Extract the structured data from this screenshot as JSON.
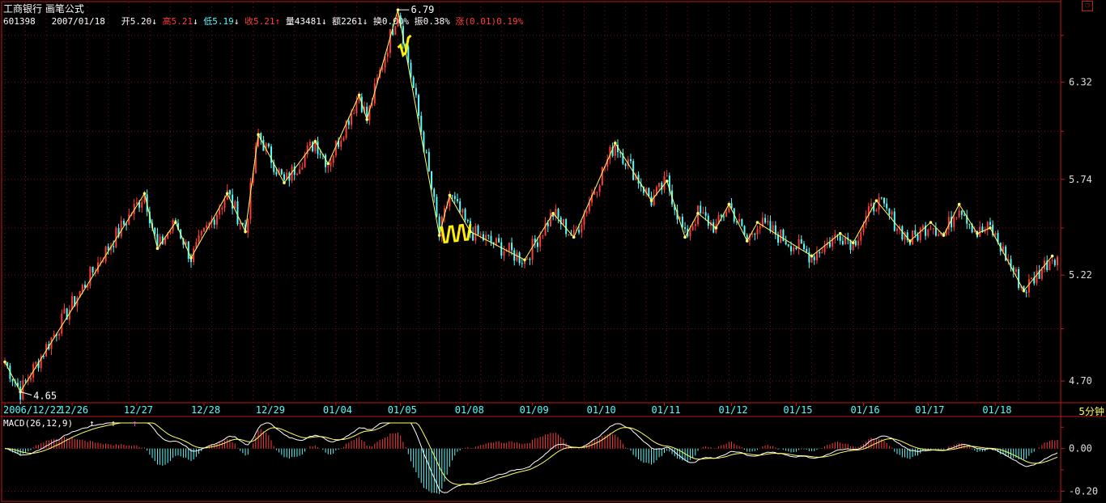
{
  "header": {
    "stock_name": "工商银行",
    "formula": "画笔公式"
  },
  "quote": {
    "code": "601398",
    "date": "2007/01/18",
    "open_label": "开",
    "open": "5.20",
    "high_label": "高",
    "high": "5.21",
    "low_label": "低",
    "low": "5.19",
    "close_label": "收",
    "close": "5.21",
    "volume_label": "量",
    "volume": "43481",
    "amount_label": "额",
    "amount": "2261",
    "turnover_label": "换",
    "turnover": "0.00%",
    "amplitude_label": "振",
    "amplitude": "0.38%",
    "change_label": "涨",
    "change": "(0.01)",
    "change_pct": "0.19%"
  },
  "period": "5分钟",
  "window_icon": "restore-icon",
  "colors": {
    "background": "#000000",
    "frame": "#c01818",
    "grid": "#7a1010",
    "up": "#ff3b3b",
    "down": "#54fcfc",
    "zigzag": "#ffff66",
    "zigzag_highlight": "#ffee00",
    "axis_text": "#dddddd",
    "date_text": "#54fcfc",
    "dif_line": "#ffffff",
    "dea_line": "#ffff66"
  },
  "chart_data": [
    {
      "type": "candlestick",
      "title": "工商银行 画笔公式",
      "x_ticks": [
        "2006/12/22",
        "12/26",
        "12/27",
        "12/28",
        "12/29",
        "01/04",
        "01/05",
        "01/08",
        "01/09",
        "01/10",
        "01/11",
        "01/12",
        "01/15",
        "01/16",
        "01/17",
        "01/18"
      ],
      "ylim": [
        4.6,
        6.84
      ],
      "y_ticks": [
        4.7,
        5.22,
        5.74,
        6.32
      ],
      "y_tick_labels": [
        "4.70",
        "5.22",
        "5.74",
        "6.32"
      ],
      "scale": "log",
      "grid": true,
      "annotations": [
        {
          "text": "6.79",
          "type": "max"
        },
        {
          "text": "4.65",
          "type": "min"
        }
      ],
      "zigzag": {
        "name": "画笔",
        "points": [
          {
            "i": 0,
            "v": 4.79
          },
          {
            "i": 6,
            "v": 4.65
          },
          {
            "i": 54,
            "v": 5.66
          },
          {
            "i": 59,
            "v": 5.36
          },
          {
            "i": 66,
            "v": 5.5
          },
          {
            "i": 72,
            "v": 5.31
          },
          {
            "i": 86,
            "v": 5.66
          },
          {
            "i": 93,
            "v": 5.45
          },
          {
            "i": 98,
            "v": 6.0
          },
          {
            "i": 108,
            "v": 5.72
          },
          {
            "i": 120,
            "v": 5.96
          },
          {
            "i": 125,
            "v": 5.83
          },
          {
            "i": 137,
            "v": 6.24
          },
          {
            "i": 140,
            "v": 6.09
          },
          {
            "i": 152,
            "v": 6.79
          },
          {
            "i": 168,
            "v": 5.43
          },
          {
            "i": 172,
            "v": 5.65
          },
          {
            "i": 180,
            "v": 5.45
          },
          {
            "i": 201,
            "v": 5.3
          },
          {
            "i": 212,
            "v": 5.55
          },
          {
            "i": 220,
            "v": 5.42
          },
          {
            "i": 236,
            "v": 5.95
          },
          {
            "i": 250,
            "v": 5.62
          },
          {
            "i": 256,
            "v": 5.73
          },
          {
            "i": 263,
            "v": 5.42
          },
          {
            "i": 268,
            "v": 5.55
          },
          {
            "i": 275,
            "v": 5.47
          },
          {
            "i": 280,
            "v": 5.6
          },
          {
            "i": 287,
            "v": 5.4
          },
          {
            "i": 291,
            "v": 5.5
          },
          {
            "i": 312,
            "v": 5.32
          },
          {
            "i": 323,
            "v": 5.44
          },
          {
            "i": 328,
            "v": 5.39
          },
          {
            "i": 337,
            "v": 5.62
          },
          {
            "i": 350,
            "v": 5.4
          },
          {
            "i": 358,
            "v": 5.5
          },
          {
            "i": 363,
            "v": 5.43
          },
          {
            "i": 369,
            "v": 5.6
          },
          {
            "i": 376,
            "v": 5.44
          },
          {
            "i": 381,
            "v": 5.47
          },
          {
            "i": 394,
            "v": 5.14
          },
          {
            "i": 405,
            "v": 5.32
          }
        ],
        "highlight_segments": [
          [
            152,
            157,
            6.5,
            6.58
          ],
          [
            168,
            180,
            5.43,
            5.45
          ]
        ]
      },
      "candles_note": "dense 5-minute bars following the zigzag path; up bars red, down bars cyan"
    },
    {
      "type": "bar+line",
      "title": "MACD(26,12,9)",
      "ylim": [
        -0.24,
        0.12
      ],
      "y_ticks": [
        0.0,
        -0.2
      ],
      "y_tick_labels": [
        "0.00",
        "-0.20"
      ],
      "series": [
        {
          "name": "MACD",
          "kind": "histogram"
        },
        {
          "name": "DIF",
          "kind": "line"
        },
        {
          "name": "DEA",
          "kind": "line"
        }
      ],
      "markers": [
        {
          "symbol": "↑",
          "color": "#ffffff"
        },
        {
          "symbol": "↑",
          "color": "#ffff55"
        },
        {
          "symbol": "↑",
          "color": "#ff44ff"
        }
      ]
    }
  ]
}
